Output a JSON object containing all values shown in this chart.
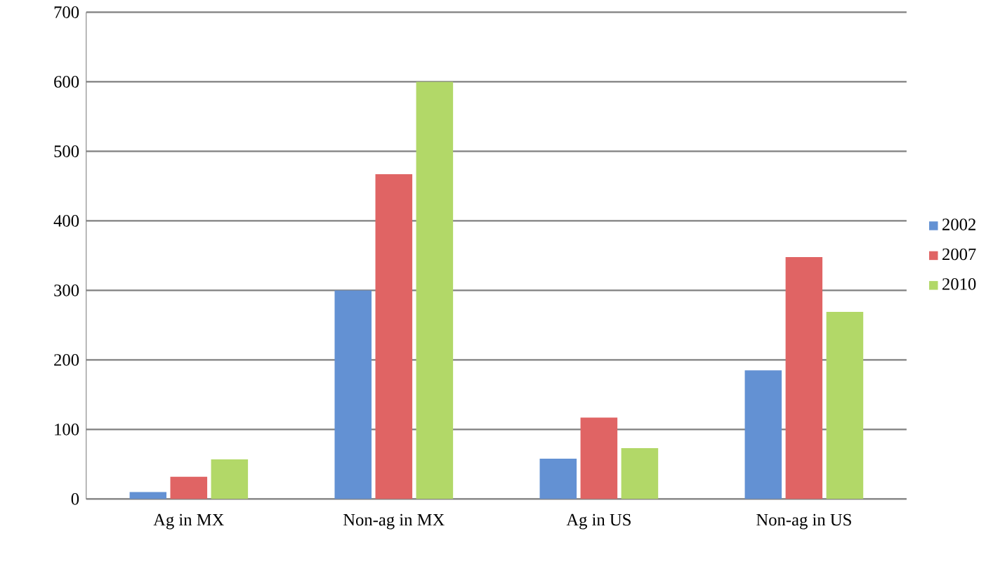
{
  "chart_data": {
    "type": "bar",
    "categories": [
      "Ag in MX",
      "Non-ag in MX",
      "Ag in US",
      "Non-ag in US"
    ],
    "series": [
      {
        "name": "2002",
        "color": "#6391d3",
        "values": [
          10,
          300,
          58,
          185
        ]
      },
      {
        "name": "2007",
        "color": "#e06464",
        "values": [
          32,
          467,
          117,
          348
        ]
      },
      {
        "name": "2010",
        "color": "#b2d868",
        "values": [
          57,
          600,
          73,
          269
        ]
      }
    ],
    "ylim": [
      0,
      700
    ],
    "yticks": [
      0,
      100,
      200,
      300,
      400,
      500,
      600,
      700
    ],
    "grid": "y",
    "legend": "right"
  }
}
